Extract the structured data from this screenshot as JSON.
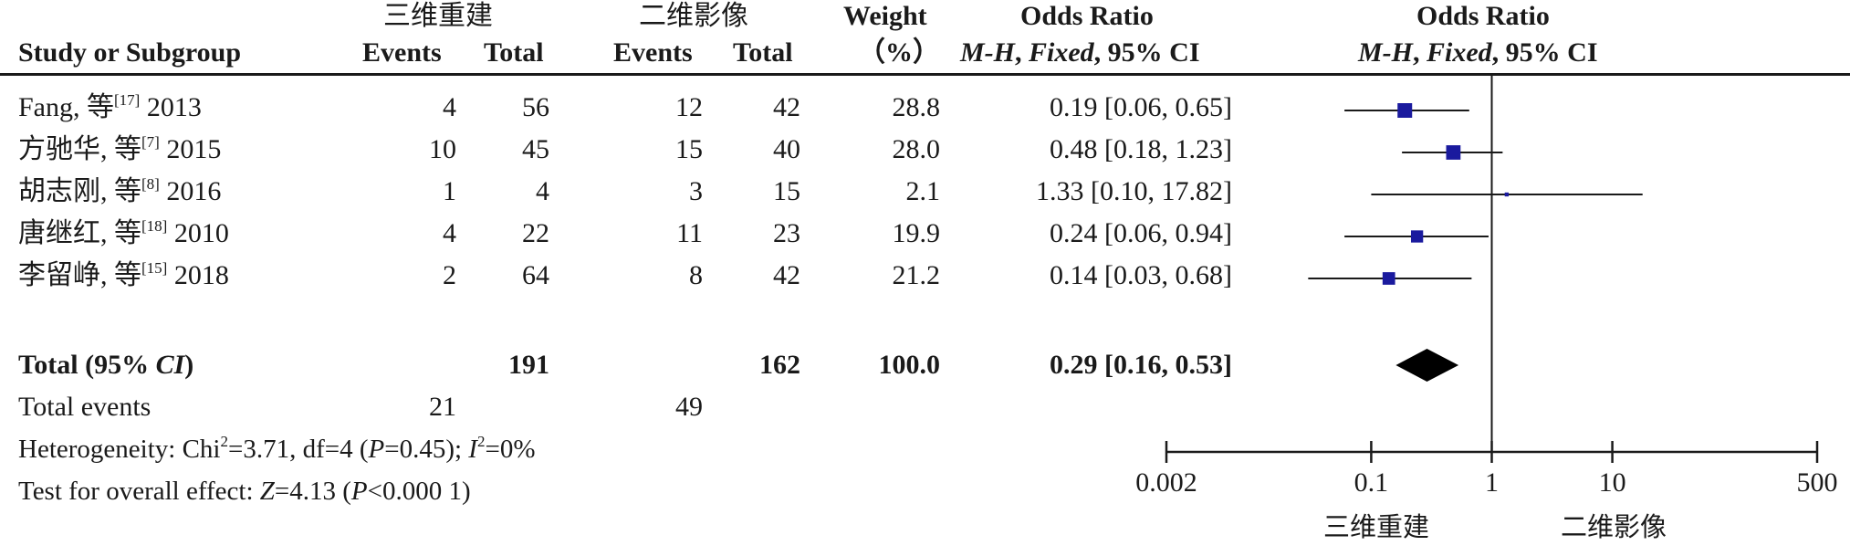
{
  "chart_data": {
    "type": "forest",
    "title": "",
    "group_labels": {
      "experimental": "三维重建",
      "control": "二维影像"
    },
    "columns": {
      "study": "Study or Subgroup",
      "events": "Events",
      "total": "Total",
      "weight_top": "Weight",
      "weight_bottom": "（%）",
      "or_top": "Odds Ratio",
      "or_method": "M-H",
      "or_model": "Fixed",
      "or_ci": "95% CI",
      "plot_top": "Odds Ratio"
    },
    "studies": [
      {
        "name": "Fang, 等",
        "ref": "[17]",
        "year": "2013",
        "e_events": "4",
        "e_total": "56",
        "c_events": "12",
        "c_total": "42",
        "weight": "28.8",
        "or_text": "0.19 [0.06, 0.65]",
        "or": 0.19,
        "lo": 0.06,
        "hi": 0.65
      },
      {
        "name": "方驰华, 等",
        "ref": "[7]",
        "year": "2015",
        "e_events": "10",
        "e_total": "45",
        "c_events": "15",
        "c_total": "40",
        "weight": "28.0",
        "or_text": "0.48 [0.18, 1.23]",
        "or": 0.48,
        "lo": 0.18,
        "hi": 1.23
      },
      {
        "name": "胡志刚, 等",
        "ref": "[8]",
        "year": "2016",
        "e_events": "1",
        "e_total": "4",
        "c_events": "3",
        "c_total": "15",
        "weight": "2.1",
        "or_text": "1.33 [0.10, 17.82]",
        "or": 1.33,
        "lo": 0.1,
        "hi": 17.82
      },
      {
        "name": "唐继红, 等",
        "ref": "[18]",
        "year": "2010",
        "e_events": "4",
        "e_total": "22",
        "c_events": "11",
        "c_total": "23",
        "weight": "19.9",
        "or_text": "0.24 [0.06, 0.94]",
        "or": 0.24,
        "lo": 0.06,
        "hi": 0.94
      },
      {
        "name": "李留峥, 等",
        "ref": "[15]",
        "year": "2018",
        "e_events": "2",
        "e_total": "64",
        "c_events": "8",
        "c_total": "42",
        "weight": "21.2",
        "or_text": "0.14 [0.03, 0.68]",
        "or": 0.14,
        "lo": 0.03,
        "hi": 0.68
      }
    ],
    "total": {
      "label": "Total (95% ",
      "label_ci": "CI",
      "label_end": ")",
      "e_total": "191",
      "c_total": "162",
      "weight": "100.0",
      "or_text": "0.29 [0.16, 0.53]",
      "or": 0.29,
      "lo": 0.16,
      "hi": 0.53
    },
    "total_events": {
      "label": "Total events",
      "e_events": "21",
      "c_events": "49"
    },
    "heterogeneity": {
      "prefix": "Heterogeneity: Chi",
      "sq": "2",
      "chi_val": "=3.71, df=4 (",
      "p": "P",
      "p_val": "=0.45); ",
      "i": "I",
      "i_sq": "2",
      "i_val": "=0%"
    },
    "overall": {
      "prefix": "Test for overall effect: ",
      "z": "Z",
      "z_val": "=4.13 (",
      "p": "P",
      "p_val": "<0.000 1)"
    },
    "x_axis": {
      "scale": "log",
      "ticks": [
        0.002,
        0.1,
        1,
        10,
        500
      ],
      "tick_labels": [
        "0.002",
        "0.1",
        "1",
        "10",
        "500"
      ],
      "left_label": "三维重建",
      "right_label": "二维影像",
      "null_value": 1
    },
    "colors": {
      "marker": "#1a1a9e",
      "diamond": "#000000",
      "line": "#1a1a1a"
    }
  }
}
